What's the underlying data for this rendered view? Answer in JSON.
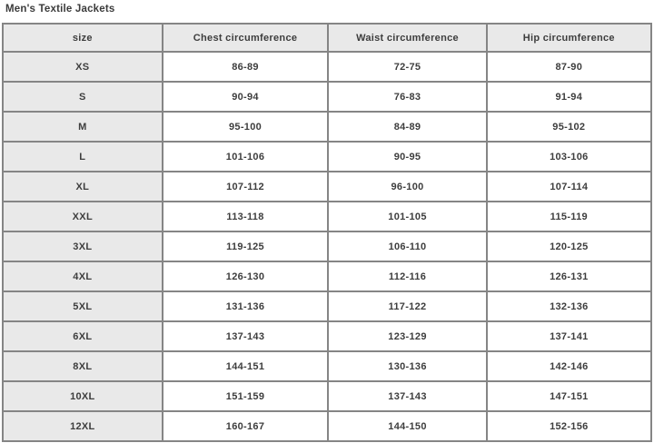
{
  "page": {
    "title": "Men's Textile Jackets"
  },
  "colors": {
    "cell_gray": "#e9e9e9",
    "border_gray": "#858585",
    "text": "#3d3d3d"
  },
  "table": {
    "columns": [
      "size",
      "Chest circumference",
      "Waist circumference",
      "Hip circumference"
    ],
    "rows": [
      {
        "size": "XS",
        "chest": "86-89",
        "waist": "72-75",
        "hip": "87-90"
      },
      {
        "size": "S",
        "chest": "90-94",
        "waist": "76-83",
        "hip": "91-94"
      },
      {
        "size": "M",
        "chest": "95-100",
        "waist": "84-89",
        "hip": "95-102"
      },
      {
        "size": "L",
        "chest": "101-106",
        "waist": "90-95",
        "hip": "103-106"
      },
      {
        "size": "XL",
        "chest": "107-112",
        "waist": "96-100",
        "hip": "107-114"
      },
      {
        "size": "XXL",
        "chest": "113-118",
        "waist": "101-105",
        "hip": "115-119"
      },
      {
        "size": "3XL",
        "chest": "119-125",
        "waist": "106-110",
        "hip": "120-125"
      },
      {
        "size": "4XL",
        "chest": "126-130",
        "waist": "112-116",
        "hip": "126-131"
      },
      {
        "size": "5XL",
        "chest": "131-136",
        "waist": "117-122",
        "hip": "132-136"
      },
      {
        "size": "6XL",
        "chest": "137-143",
        "waist": "123-129",
        "hip": "137-141"
      },
      {
        "size": "8XL",
        "chest": "144-151",
        "waist": "130-136",
        "hip": "142-146"
      },
      {
        "size": "10XL",
        "chest": "151-159",
        "waist": "137-143",
        "hip": "147-151"
      },
      {
        "size": "12XL",
        "chest": "160-167",
        "waist": "144-150",
        "hip": "152-156"
      }
    ]
  }
}
